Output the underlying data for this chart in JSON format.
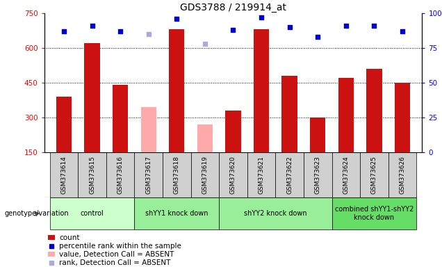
{
  "title": "GDS3788 / 219914_at",
  "samples": [
    "GSM373614",
    "GSM373615",
    "GSM373616",
    "GSM373617",
    "GSM373618",
    "GSM373619",
    "GSM373620",
    "GSM373621",
    "GSM373622",
    "GSM373623",
    "GSM373624",
    "GSM373625",
    "GSM373626"
  ],
  "count_values": [
    390,
    620,
    440,
    null,
    680,
    null,
    330,
    680,
    480,
    300,
    470,
    510,
    450
  ],
  "absent_count_values": [
    null,
    null,
    null,
    345,
    null,
    270,
    null,
    null,
    null,
    null,
    null,
    null,
    null
  ],
  "percentile_values": [
    87,
    91,
    87,
    null,
    96,
    null,
    88,
    97,
    90,
    83,
    91,
    91,
    87
  ],
  "absent_percentile_values": [
    null,
    null,
    null,
    85,
    null,
    78,
    null,
    null,
    null,
    null,
    null,
    null,
    null
  ],
  "groups": [
    {
      "label": "control",
      "start": 0,
      "end": 3
    },
    {
      "label": "shYY1 knock down",
      "start": 3,
      "end": 6
    },
    {
      "label": "shYY2 knock down",
      "start": 6,
      "end": 10
    },
    {
      "label": "combined shYY1-shYY2\nknock down",
      "start": 10,
      "end": 13
    }
  ],
  "group_colors": [
    "#ccffcc",
    "#99ee99",
    "#99ee99",
    "#66dd66"
  ],
  "ylim_left": [
    150,
    750
  ],
  "ylim_right": [
    0,
    100
  ],
  "yticks_left": [
    150,
    300,
    450,
    600,
    750
  ],
  "yticks_right": [
    0,
    25,
    50,
    75,
    100
  ],
  "bar_color_present": "#cc1111",
  "bar_color_absent": "#ffaaaa",
  "dot_color_present": "#0000cc",
  "dot_color_absent": "#aaaadd",
  "bar_width": 0.55,
  "sample_bg_color": "#d0d0d0",
  "white": "#ffffff"
}
